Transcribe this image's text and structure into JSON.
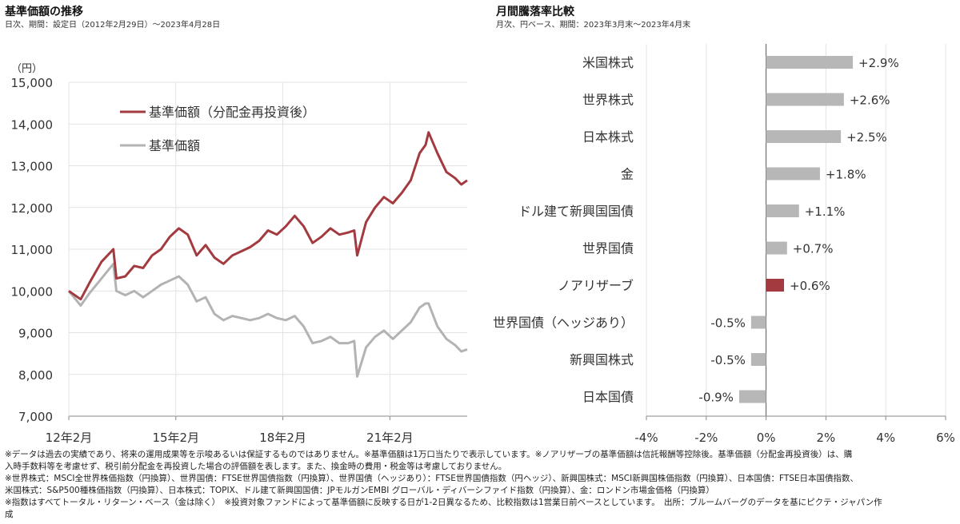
{
  "left": {
    "title": "基準価額の推移",
    "subtitle": "日次、期間：設定日（2012年2月29日）～2023年4月28日",
    "unit": "（円）",
    "chart_data": {
      "type": "line",
      "y_ticks": [
        "15,000",
        "14,000",
        "13,000",
        "12,000",
        "11,000",
        "10,000",
        "9,000",
        "8,000",
        "7,000"
      ],
      "x_ticks": [
        "12年2月",
        "15年2月",
        "18年2月",
        "21年2月"
      ],
      "ylim": [
        7000,
        15000
      ],
      "grid": true,
      "legend_position": "top-left",
      "x_dates": [
        "2012-02",
        "2012-06",
        "2012-09",
        "2013-01",
        "2013-05",
        "2013-06",
        "2013-09",
        "2013-12",
        "2014-03",
        "2014-06",
        "2014-09",
        "2014-12",
        "2015-03",
        "2015-06",
        "2015-09",
        "2015-12",
        "2016-03",
        "2016-06",
        "2016-09",
        "2016-12",
        "2017-03",
        "2017-06",
        "2017-09",
        "2017-12",
        "2018-03",
        "2018-06",
        "2018-09",
        "2018-12",
        "2019-03",
        "2019-06",
        "2019-09",
        "2019-12",
        "2020-02",
        "2020-03",
        "2020-06",
        "2020-09",
        "2020-12",
        "2021-03",
        "2021-06",
        "2021-09",
        "2021-12",
        "2022-02",
        "2022-03",
        "2022-06",
        "2022-09",
        "2022-12",
        "2023-02",
        "2023-04"
      ],
      "series": [
        {
          "name": "基準価額（分配金再投資後）",
          "color": "#a33a3f",
          "values": [
            10000,
            9800,
            10200,
            10700,
            11000,
            10300,
            10350,
            10600,
            10550,
            10850,
            11000,
            11300,
            11500,
            11350,
            10850,
            11100,
            10800,
            10650,
            10850,
            10950,
            11050,
            11200,
            11450,
            11350,
            11550,
            11800,
            11550,
            11150,
            11300,
            11500,
            11350,
            11400,
            11450,
            10850,
            11650,
            12000,
            12250,
            12100,
            12350,
            12650,
            13300,
            13500,
            13800,
            13300,
            12850,
            12700,
            12550,
            12650
          ]
        },
        {
          "name": "基準価額",
          "color": "#b3b3b3",
          "values": [
            10000,
            9650,
            9950,
            10300,
            10650,
            10000,
            9900,
            10000,
            9850,
            10000,
            10150,
            10250,
            10350,
            10150,
            9750,
            9850,
            9450,
            9300,
            9400,
            9350,
            9300,
            9350,
            9450,
            9350,
            9300,
            9400,
            9150,
            8750,
            8800,
            8900,
            8750,
            8750,
            8800,
            7950,
            8650,
            8900,
            9050,
            8850,
            9050,
            9250,
            9600,
            9700,
            9700,
            9150,
            8850,
            8700,
            8550,
            8600
          ]
        }
      ]
    }
  },
  "right": {
    "title": "月間騰落率比較",
    "subtitle": "月次、円ベース、期間：2023年3月末～2023年4月末",
    "chart_data": {
      "type": "bar",
      "orientation": "horizontal",
      "categories": [
        "米国株式",
        "世界株式",
        "日本株式",
        "金",
        "ドル建て新興国国債",
        "世界国債",
        "ノアリザーブ",
        "世界国債（ヘッジあり）",
        "新興国株式",
        "日本国債"
      ],
      "values": [
        2.9,
        2.6,
        2.5,
        1.8,
        1.1,
        0.7,
        0.6,
        -0.5,
        -0.5,
        -0.9
      ],
      "value_labels": [
        "+2.9%",
        "+2.6%",
        "+2.5%",
        "+1.8%",
        "+1.1%",
        "+0.7%",
        "+0.6%",
        "-0.5%",
        "-0.5%",
        "-0.9%"
      ],
      "highlight_index": 6,
      "highlight_color": "#a33a3f",
      "bar_color": "#b7b7b7",
      "x_ticks": [
        "-4%",
        "-2%",
        "0%",
        "2%",
        "4%",
        "6%"
      ],
      "xlim": [
        -4,
        6
      ],
      "grid": true
    }
  },
  "notes": [
    "※データは過去の実績であり、将来の運用成果等を示唆あるいは保証するものではありません。※基準価額は1万口当たりで表示しています。※ノアリザーブの基準価額は信託報酬等控除後。基準価額（分配金再投資後）は、購",
    "入時手数料等を考慮せず、税引前分配金を再投資した場合の評価額を表します。また、換金時の費用・税金等は考慮しておりません。",
    "※世界株式：MSCI全世界株価指数（円換算）、世界国債：FTSE世界国債指数（円換算）、世界国債（ヘッジあり）：FTSE世界国債指数（円ヘッジ）、新興国株式：MSCI新興国株価指数（円換算）、日本国債：FTSE日本国債指数、",
    "米国株式：S&P500種株価指数（円換算）、日本株式：TOPIX、ドル建て新興国国債：JPモルガンEMBI グローバル・ディバーシファイド指数（円換算）、金：ロンドン市場金価格（円換算）",
    "※指数はすべてトータル・リターン・ベース（金は除く）　※投資対象ファンドによって基準価額に反映する日が1-2日異なるため、比較指数は1営業日前ベースとしています。　出所：ブルームバーグのデータを基にピクテ・ジャパン作",
    "成"
  ]
}
